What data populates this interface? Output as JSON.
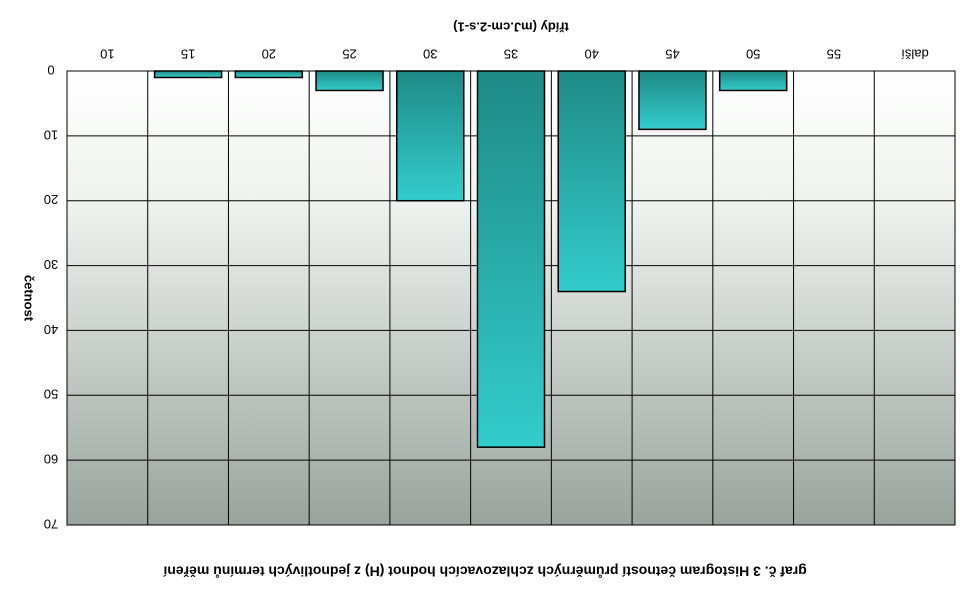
{
  "chart_data": {
    "type": "bar",
    "orientation": "rotated-180",
    "title": "graf č. 3 Histogram četností průměrných zchlazovacích hodnot (H) z jednotlivých termínů měření",
    "xlabel": "třídy (mJ.cm-2.s-1)",
    "ylabel": "četnost",
    "categories": [
      "10",
      "15",
      "20",
      "25",
      "30",
      "35",
      "40",
      "45",
      "50",
      "55",
      "další"
    ],
    "values": [
      0,
      1,
      1,
      3,
      20,
      58,
      34,
      9,
      3,
      0,
      0
    ],
    "y_ticks": [
      "0",
      "10",
      "20",
      "30",
      "40",
      "50",
      "60",
      "70"
    ],
    "ylim": [
      0,
      70
    ],
    "grid": true,
    "colors": {
      "bar_dark": "#1f8a86",
      "bar_light": "#33cccc",
      "bg_top": "#ffffff",
      "bg_bottom": "#9aa39d"
    }
  }
}
